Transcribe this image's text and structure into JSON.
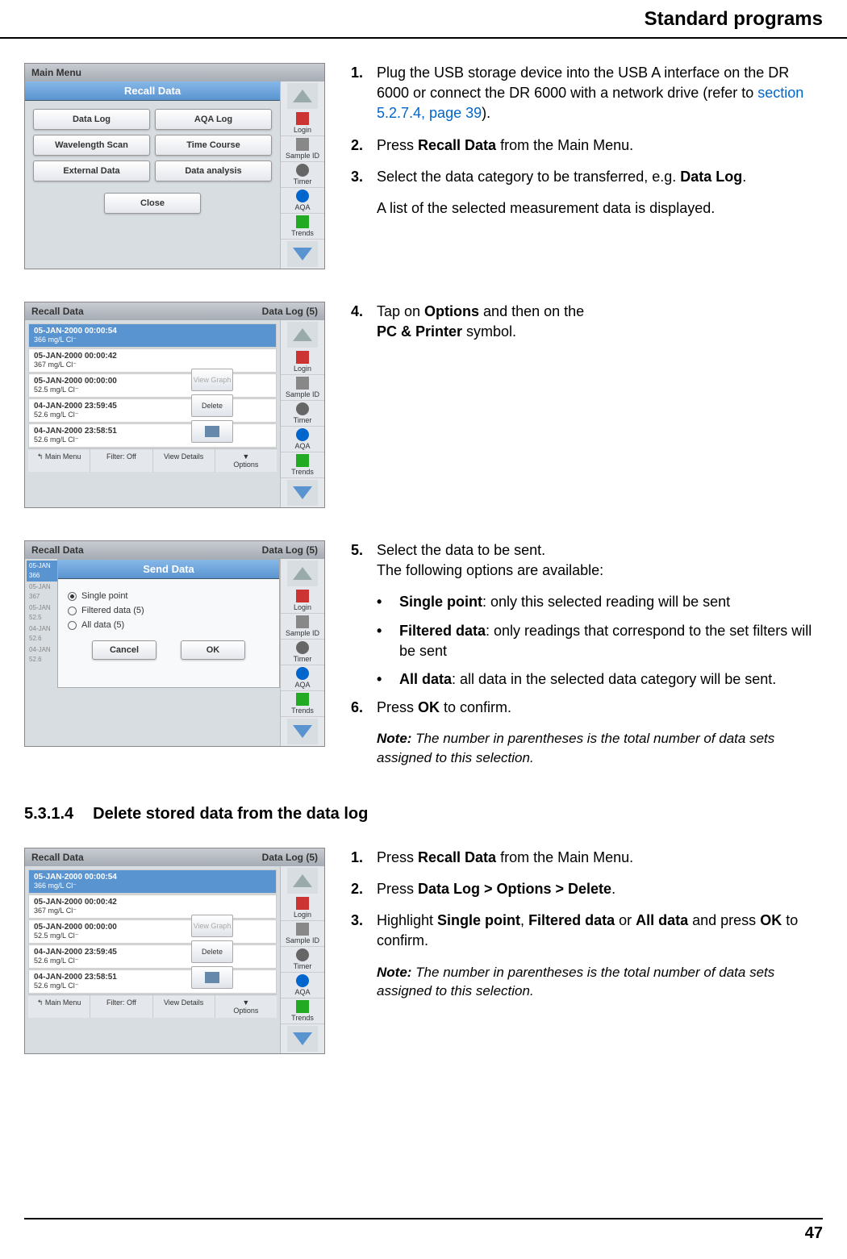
{
  "page_header": "Standard programs",
  "page_number": "47",
  "shot1": {
    "title": "Recall Data",
    "buttons": [
      "Data Log",
      "AQA Log",
      "Wavelength Scan",
      "Time Course",
      "External Data",
      "Data analysis"
    ],
    "close": "Close",
    "side": [
      "Login",
      "Sample ID",
      "Timer",
      "AQA",
      "Trends"
    ],
    "bg_title": "Main Menu"
  },
  "shot2": {
    "title": "Recall Data",
    "right_label": "Data Log (5)",
    "rows": [
      {
        "t": "05-JAN-2000  00:00:54",
        "v": "366  mg/L  Cl⁻",
        "sel": true
      },
      {
        "t": "05-JAN-2000  00:00:42",
        "v": "367  mg/L  Cl⁻"
      },
      {
        "t": "05-JAN-2000  00:00:00",
        "v": "52.5  mg/L  Cl⁻"
      },
      {
        "t": "04-JAN-2000  23:59:45",
        "v": "52.6  mg/L  Cl⁻"
      },
      {
        "t": "04-JAN-2000  23:58:51",
        "v": "52.6  mg/L  Cl⁻"
      }
    ],
    "opt_buttons": [
      "View Graph",
      "Delete",
      ""
    ],
    "bottom": [
      "Main Menu",
      "Filter: Off",
      "View Details",
      "Options"
    ],
    "side": [
      "Login",
      "Sample ID",
      "Timer",
      "AQA",
      "Trends"
    ]
  },
  "shot3": {
    "title": "Send Data",
    "bg_title": "Recall Data",
    "right_label": "Data Log (5)",
    "radios": [
      "Single point",
      "Filtered data (5)",
      "All data (5)"
    ],
    "cancel": "Cancel",
    "ok": "OK",
    "side": [
      "Login",
      "Sample ID",
      "Timer",
      "AQA",
      "Trends"
    ],
    "bg_rows": [
      "05-JAN",
      "366",
      "05-JAN",
      "367",
      "05-JAN",
      "52.5",
      "04-JAN",
      "52.6",
      "04-JAN",
      "52.6"
    ]
  },
  "inst1": {
    "n1": "1.",
    "t1a": "Plug the USB storage device into the USB A interface on the DR 6000 or connect the DR 6000 with a network drive (refer to ",
    "t1link": "section 5.2.7.4, page 39",
    "t1b": ").",
    "n2": "2.",
    "t2a": "Press ",
    "t2b": "Recall Data",
    "t2c": " from the Main Menu.",
    "n3": "3.",
    "t3a": "Select the data category to be transferred, e.g. ",
    "t3b": "Data Log",
    "t3c": ".",
    "sub3": "A list of the selected measurement data is displayed."
  },
  "inst2": {
    "n4": "4.",
    "t4a": "Tap on ",
    "t4b": "Options",
    "t4c": " and then on the ",
    "t4d": "PC & Printer",
    "t4e": " symbol."
  },
  "inst3": {
    "n5": "5.",
    "t5a": "Select the data to be sent.",
    "t5b": "The following options are available:",
    "b1a": "Single point",
    "b1b": ": only this selected reading will be sent",
    "b2a": "Filtered data",
    "b2b": ": only readings that correspond to the set filters will be sent",
    "b3a": "All data",
    "b3b": ": all data in the selected data category will be sent.",
    "n6": "6.",
    "t6a": "Press ",
    "t6b": "OK",
    "t6c": " to confirm.",
    "note_label": "Note:",
    "note_text": " The number in parentheses is the total number of data sets assigned to this selection."
  },
  "subheading_num": "5.3.1.4",
  "subheading_text": "Delete stored data from the data log",
  "inst4": {
    "n1": "1.",
    "t1a": "Press ",
    "t1b": "Recall Data",
    "t1c": " from the Main Menu.",
    "n2": "2.",
    "t2a": "Press ",
    "t2b": "Data Log > Options > Delete",
    "t2c": ".",
    "n3": "3.",
    "t3a": "Highlight ",
    "t3b": "Single point",
    "t3c": ", ",
    "t3d": "Filtered data",
    "t3e": " or ",
    "t3f": "All data",
    "t3g": " and press ",
    "t3h": "OK",
    "t3i": " to confirm.",
    "note_label": "Note:",
    "note_text": " The number in parentheses is the total number of data sets assigned to this selection."
  }
}
